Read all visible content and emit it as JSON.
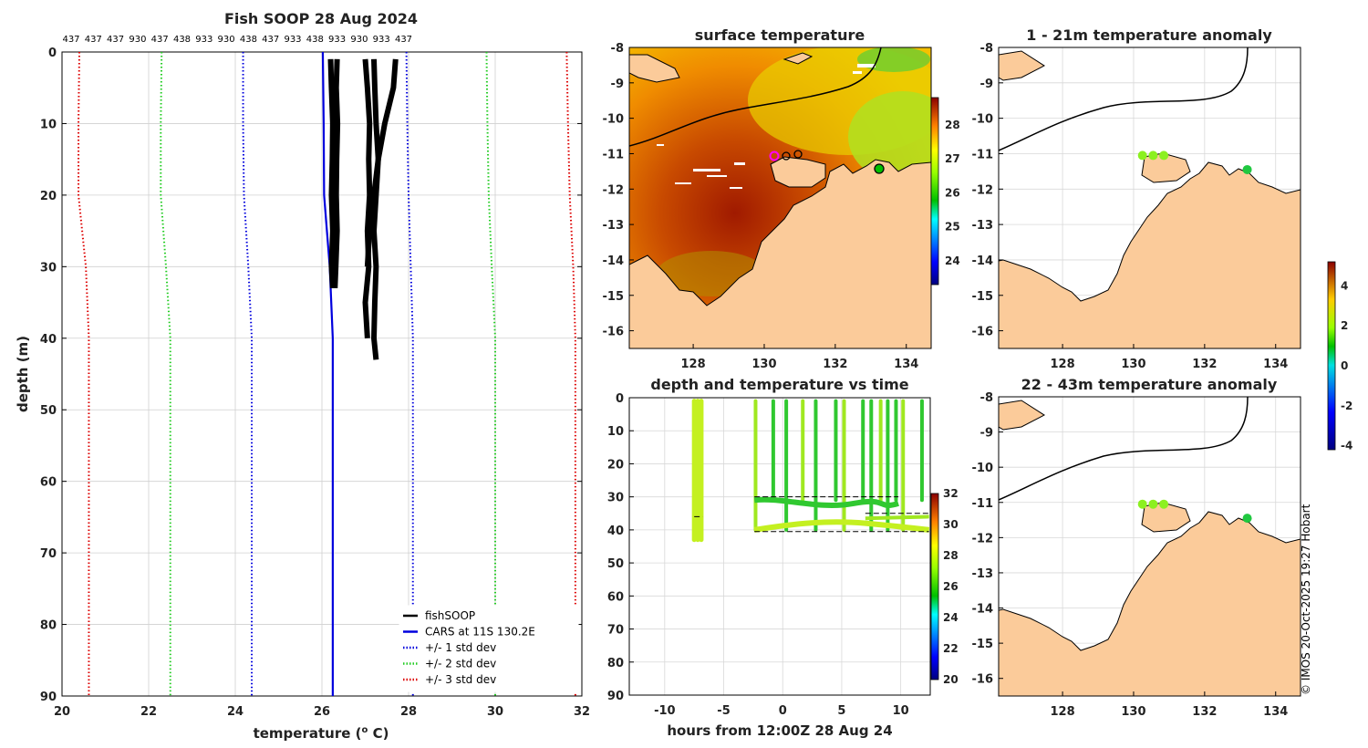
{
  "chart_data": [
    {
      "id": "profile",
      "type": "line",
      "title": "Fish SOOP 28 Aug 2024",
      "top_labels": [
        "437",
        "437",
        "437",
        "930",
        "437",
        "438",
        "933",
        "930",
        "438",
        "437",
        "933",
        "438",
        "933",
        "930",
        "933",
        "437"
      ],
      "xlabel": "temperature",
      "xlabel_sup": "o",
      "xlabel_unit": " C)",
      "ylabel": "depth (m)",
      "xlim": [
        20,
        32
      ],
      "ylim": [
        0,
        90
      ],
      "y_reversed": true,
      "xticks": [
        "20",
        "22",
        "24",
        "26",
        "28",
        "30",
        "32"
      ],
      "yticks": [
        "0",
        "10",
        "20",
        "30",
        "40",
        "50",
        "60",
        "70",
        "80",
        "90"
      ],
      "legend": [
        {
          "label": "fishSOOP",
          "color": "#000000",
          "style": "solid"
        },
        {
          "label": "CARS at 11S 130.2E",
          "color": "#0000dd",
          "style": "solid"
        },
        {
          "label": "+/- 1 std dev",
          "color": "#0000dd",
          "style": "dotted"
        },
        {
          "label": "+/- 2 std dev",
          "color": "#22cc22",
          "style": "dotted"
        },
        {
          "label": "+/- 3 std dev",
          "color": "#dd0000",
          "style": "dotted"
        }
      ],
      "cars_mean": {
        "depth": [
          0,
          10,
          20,
          30,
          40,
          50,
          60,
          70,
          80,
          90
        ],
        "temp": [
          26.02,
          26.04,
          26.05,
          26.18,
          26.25,
          26.25,
          26.25,
          26.25,
          26.25,
          26.25
        ]
      },
      "std1": {
        "lower": [
          24.18,
          24.18,
          24.2,
          24.3,
          24.38,
          24.38,
          24.38,
          24.38,
          24.38,
          24.38
        ],
        "upper": [
          27.95,
          27.97,
          28.0,
          28.05,
          28.1,
          28.1,
          28.1,
          28.1,
          28.1,
          28.1
        ]
      },
      "std2": {
        "lower": [
          22.3,
          22.28,
          22.28,
          22.4,
          22.5,
          22.5,
          22.5,
          22.5,
          22.5,
          22.5
        ],
        "upper": [
          29.8,
          29.82,
          29.85,
          29.92,
          30.0,
          30.0,
          30.0,
          30.0,
          30.0,
          30.0
        ]
      },
      "std3": {
        "lower": [
          20.4,
          20.38,
          20.38,
          20.55,
          20.62,
          20.62,
          20.62,
          20.62,
          20.62,
          20.62
        ],
        "upper": [
          31.65,
          31.68,
          31.72,
          31.8,
          31.85,
          31.85,
          31.85,
          31.85,
          31.85,
          31.85
        ]
      },
      "fish_profiles": [
        {
          "depth": [
            1,
            5,
            10,
            15,
            20,
            25,
            30,
            33
          ],
          "temp": [
            26.2,
            26.22,
            26.25,
            26.24,
            26.22,
            26.25,
            26.22,
            26.25
          ]
        },
        {
          "depth": [
            1,
            5,
            10,
            15,
            20,
            25,
            30,
            33
          ],
          "temp": [
            26.35,
            26.33,
            26.36,
            26.34,
            26.33,
            26.35,
            26.32,
            26.3
          ]
        },
        {
          "depth": [
            1,
            5,
            10,
            15,
            20,
            25,
            30,
            35,
            40
          ],
          "temp": [
            27.0,
            27.05,
            27.1,
            27.08,
            27.1,
            27.05,
            27.08,
            27.0,
            27.05
          ]
        },
        {
          "depth": [
            1,
            5,
            10,
            15,
            20,
            25,
            30,
            35,
            40,
            43
          ],
          "temp": [
            27.2,
            27.22,
            27.25,
            27.3,
            27.25,
            27.2,
            27.25,
            27.22,
            27.2,
            27.25
          ]
        },
        {
          "depth": [
            1,
            5,
            10,
            15,
            20,
            25,
            30
          ],
          "temp": [
            27.7,
            27.65,
            27.45,
            27.3,
            27.2,
            27.1,
            27.05
          ]
        }
      ]
    },
    {
      "id": "sst",
      "type": "heatmap",
      "title": "surface temperature",
      "xlim": [
        126.2,
        134.7
      ],
      "ylim": [
        -16.5,
        -8
      ],
      "xticks": [
        "128",
        "130",
        "132",
        "134"
      ],
      "yticks": [
        "-8",
        "-9",
        "-10",
        "-11",
        "-12",
        "-13",
        "-14",
        "-15",
        "-16"
      ],
      "colorbar": {
        "min": 23.3,
        "max": 28.8,
        "ticks": [
          "28",
          "27",
          "26",
          "25",
          "24"
        ]
      }
    },
    {
      "id": "time",
      "type": "scatter",
      "title": "depth and temperature vs time",
      "xlabel": "hours from 12:00Z 28 Aug 24",
      "xlim": [
        -13,
        12.5
      ],
      "ylim": [
        0,
        90
      ],
      "y_reversed": true,
      "xticks": [
        "-10",
        "-5",
        "0",
        "5",
        "10"
      ],
      "yticks": [
        "0",
        "10",
        "20",
        "30",
        "40",
        "50",
        "60",
        "70",
        "80",
        "90"
      ],
      "colorbar": {
        "min": 20,
        "max": 32,
        "ticks": [
          "32",
          "30",
          "28",
          "26",
          "24",
          "22",
          "20"
        ]
      }
    },
    {
      "id": "anom1",
      "type": "scatter",
      "title": "1 - 21m temperature anomaly",
      "xlim": [
        126.2,
        134.7
      ],
      "ylim": [
        -16.5,
        -8
      ],
      "xticks": [
        "128",
        "130",
        "132",
        "134"
      ],
      "yticks": [
        "-8",
        "-9",
        "-10",
        "-11",
        "-12",
        "-13",
        "-14",
        "-15",
        "-16"
      ],
      "points": [
        {
          "lon": 130.25,
          "lat": -11.05,
          "anom": 1.0
        },
        {
          "lon": 130.55,
          "lat": -11.05,
          "anom": 0.9
        },
        {
          "lon": 130.85,
          "lat": -11.05,
          "anom": 0.8
        },
        {
          "lon": 133.2,
          "lat": -11.45,
          "anom": 0.1
        }
      ]
    },
    {
      "id": "anom2",
      "type": "scatter",
      "title": "22 - 43m temperature anomaly",
      "xlim": [
        126.2,
        134.7
      ],
      "ylim": [
        -16.5,
        -8
      ],
      "xticks": [
        "128",
        "130",
        "132",
        "134"
      ],
      "yticks": [
        "-8",
        "-9",
        "-10",
        "-11",
        "-12",
        "-13",
        "-14",
        "-15",
        "-16"
      ],
      "points": [
        {
          "lon": 130.25,
          "lat": -11.05,
          "anom": 0.9
        },
        {
          "lon": 130.55,
          "lat": -11.05,
          "anom": 0.8
        },
        {
          "lon": 130.85,
          "lat": -11.05,
          "anom": 0.9
        },
        {
          "lon": 133.2,
          "lat": -11.45,
          "anom": 0.1
        }
      ]
    },
    {
      "id": "anom_cbar",
      "type": "colorbar",
      "min": -4.2,
      "max": 5.2,
      "ticks": [
        "4",
        "2",
        "0",
        "-2",
        "-4"
      ]
    }
  ],
  "credit": "© IMOS 20-Oct-2025 19:27 Hobart",
  "colors": {
    "land": "#fbcb9a",
    "grid": "#cccccc"
  }
}
